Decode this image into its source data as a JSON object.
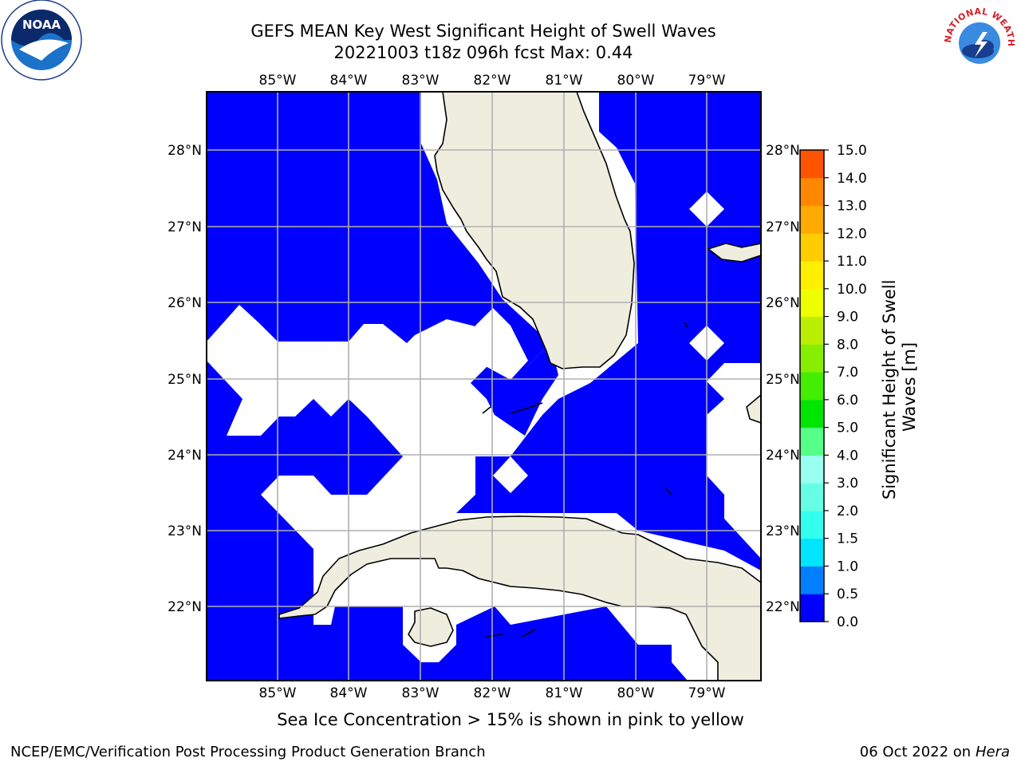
{
  "title_line1": "GEFS MEAN Key West Significant Height of Swell Waves",
  "title_line2": "20221003 t18z 096h fcst   Max: 0.44",
  "longitude_labels": [
    "85°W",
    "84°W",
    "83°W",
    "82°W",
    "81°W",
    "80°W",
    "79°W"
  ],
  "latitude_labels": [
    "28°N",
    "27°N",
    "26°N",
    "25°N",
    "24°N",
    "23°N",
    "22°N"
  ],
  "colorbar": {
    "title_line1": "Significant Height of Swell",
    "title_line2": "Waves [m]",
    "tick_labels": [
      "0.0",
      "0.5",
      "1.0",
      "1.5",
      "2.0",
      "3.0",
      "4.0",
      "5.0",
      "6.0",
      "7.0",
      "8.0",
      "9.0",
      "10.0",
      "11.0",
      "12.0",
      "13.0",
      "14.0",
      "15.0"
    ],
    "colors": [
      "#0000ff",
      "#0080ff",
      "#00e5ff",
      "#33ffee",
      "#66ffe6",
      "#99fff0",
      "#55ff88",
      "#00e600",
      "#44ee00",
      "#88ee00",
      "#bbee00",
      "#eeff00",
      "#ffee00",
      "#ffcc00",
      "#ffaa00",
      "#ff8800",
      "#ff5500",
      "#ff2200",
      "#ff0000"
    ]
  },
  "colors": {
    "ocean_swell": "#0000ff",
    "land": "#efedde",
    "grid": "#b0b0b0",
    "masked": "#ffffff"
  },
  "note": "Sea Ice Concentration > 15% is shown in pink to yellow",
  "footer_left": "NCEP/EMC/Verification Post Processing Product Generation Branch",
  "footer_right_date": "06 Oct 2022 on",
  "footer_right_host": "Hera",
  "logo_left": "NOAA",
  "logo_right_text": "NATIONAL WEATHER SERVICE"
}
